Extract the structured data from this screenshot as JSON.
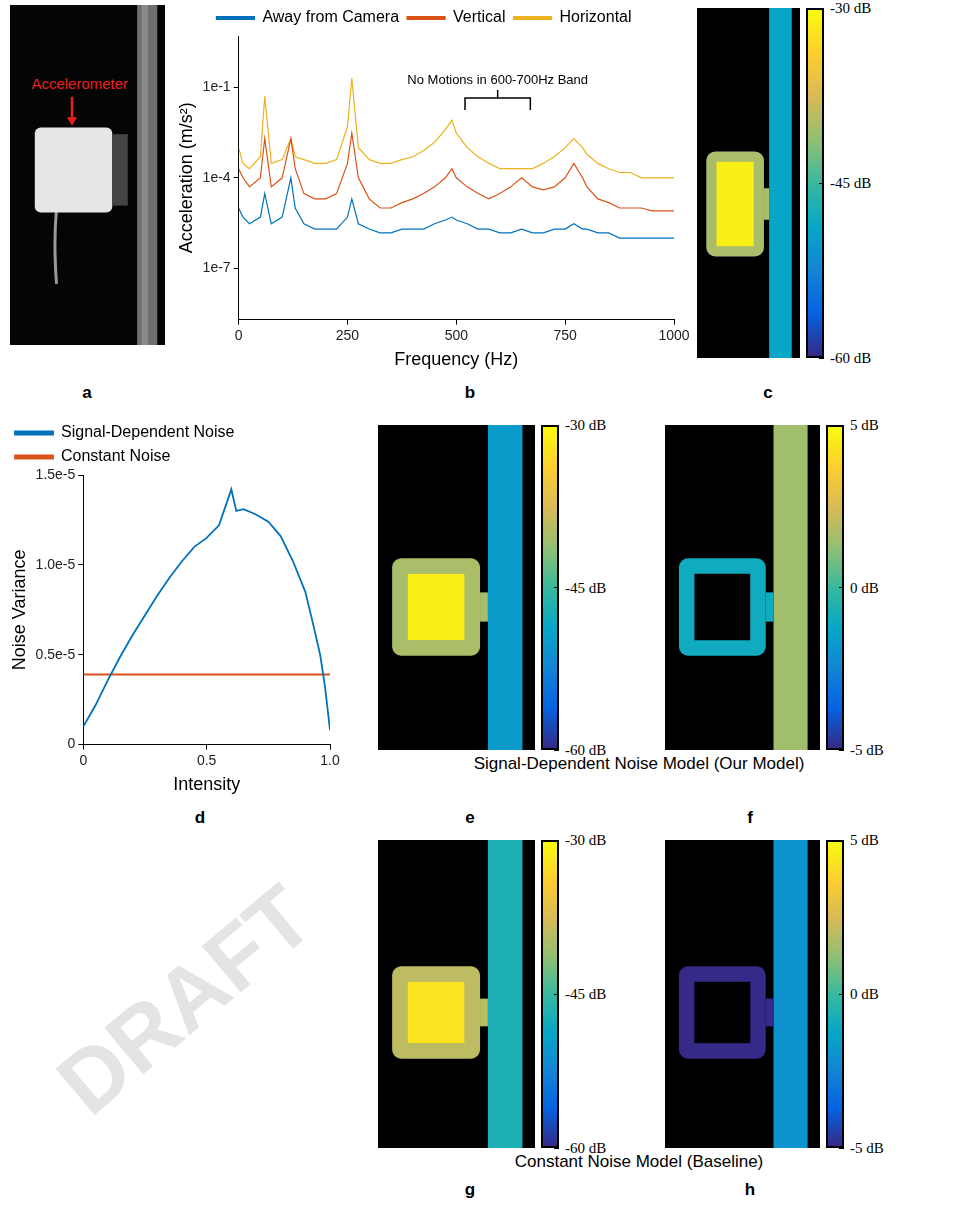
{
  "chart_data": [
    {
      "panel": "b",
      "type": "line",
      "x_label": "Frequency (Hz)",
      "y_label": "Acceleration (m/s²)",
      "x": [
        0,
        10,
        25,
        50,
        60,
        75,
        100,
        120,
        130,
        150,
        175,
        200,
        225,
        250,
        260,
        275,
        300,
        325,
        350,
        375,
        400,
        425,
        450,
        475,
        490,
        500,
        525,
        550,
        575,
        600,
        625,
        650,
        675,
        700,
        725,
        750,
        770,
        790,
        800,
        825,
        850,
        875,
        900,
        925,
        950,
        975,
        1000
      ],
      "series": [
        {
          "name": "Away from Camera",
          "color": "#0072bd",
          "values": [
            1e-05,
            5e-06,
            3e-06,
            5e-06,
            3e-05,
            3e-06,
            5e-06,
            0.0001,
            1e-05,
            3e-06,
            2e-06,
            2e-06,
            2e-06,
            5e-06,
            2e-05,
            3e-06,
            2e-06,
            1.5e-06,
            1.5e-06,
            2e-06,
            2e-06,
            2e-06,
            3e-06,
            4e-06,
            5e-06,
            4e-06,
            3e-06,
            2e-06,
            2e-06,
            1.5e-06,
            1.5e-06,
            2e-06,
            1.5e-06,
            1.5e-06,
            2e-06,
            2e-06,
            3e-06,
            2e-06,
            2e-06,
            1.5e-06,
            1.5e-06,
            1e-06,
            1e-06,
            1e-06,
            1e-06,
            1e-06,
            1e-06
          ]
        },
        {
          "name": "Vertical",
          "color": "#d95319",
          "values": [
            0.0002,
            0.0001,
            5e-05,
            0.0001,
            0.002,
            5e-05,
            0.0001,
            0.002,
            0.0002,
            3e-05,
            2e-05,
            2e-05,
            3e-05,
            0.0003,
            0.003,
            0.0001,
            2e-05,
            1e-05,
            1e-05,
            1.5e-05,
            2e-05,
            3e-05,
            5e-05,
            0.0001,
            0.0002,
            0.0001,
            5e-05,
            3e-05,
            2e-05,
            3e-05,
            5e-05,
            0.0001,
            5e-05,
            4e-05,
            5e-05,
            0.0001,
            0.0003,
            0.0001,
            5e-05,
            2e-05,
            1.5e-05,
            1e-05,
            1e-05,
            1e-05,
            8e-06,
            8e-06,
            8e-06
          ]
        },
        {
          "name": "Horizontal",
          "color": "#edb120",
          "values": [
            0.001,
            0.0003,
            0.0002,
            0.0005,
            0.05,
            0.0003,
            0.0004,
            0.002,
            0.0005,
            0.0004,
            0.0003,
            0.0003,
            0.0004,
            0.005,
            0.2,
            0.001,
            0.0004,
            0.0003,
            0.0003,
            0.0004,
            0.0005,
            0.0008,
            0.0015,
            0.004,
            0.008,
            0.003,
            0.001,
            0.0005,
            0.0003,
            0.0002,
            0.0002,
            0.0002,
            0.0002,
            0.0003,
            0.0005,
            0.001,
            0.002,
            0.001,
            0.0006,
            0.0003,
            0.0002,
            0.00015,
            0.00015,
            0.0001,
            0.0001,
            0.0001,
            0.0001
          ]
        }
      ],
      "xlim": [
        0,
        1000
      ],
      "xticks": [
        0,
        250,
        500,
        750,
        1000
      ],
      "ylim": [
        2e-09,
        5
      ],
      "yticks": [
        {
          "value": 1e-07,
          "label": "1e-7"
        },
        {
          "value": 0.0001,
          "label": "1e-4"
        },
        {
          "value": 0.1,
          "label": "1e-1"
        }
      ],
      "log": "y",
      "grid": false,
      "legend": "top",
      "annotation": {
        "text": "No Motions in 600-700Hz Band",
        "x_range": [
          520,
          670
        ]
      }
    },
    {
      "panel": "d",
      "type": "line",
      "x_label": "Intensity",
      "y_label": "Noise Variance",
      "x": [
        0,
        0.05,
        0.1,
        0.15,
        0.2,
        0.25,
        0.3,
        0.35,
        0.4,
        0.45,
        0.5,
        0.55,
        0.6,
        0.62,
        0.65,
        0.7,
        0.75,
        0.8,
        0.85,
        0.9,
        0.93,
        0.96,
        0.98,
        1
      ],
      "series": [
        {
          "name": "Signal-Dependent Noise",
          "color": "#0072bd",
          "values": [
            1e-06,
            2.2e-06,
            3.6e-06,
            4.9e-06,
            6.1e-06,
            7.2e-06,
            8.3e-06,
            9.3e-06,
            1.02e-05,
            1.1e-05,
            1.15e-05,
            1.22e-05,
            1.42e-05,
            1.3e-05,
            1.31e-05,
            1.28e-05,
            1.24e-05,
            1.16e-05,
            1.02e-05,
            8.5e-06,
            6.8e-06,
            5e-06,
            3.2e-06,
            8e-07
          ]
        },
        {
          "name": "Constant Noise",
          "color": "#d95319",
          "values": [
            3.9e-06,
            3.9e-06,
            3.9e-06,
            3.9e-06,
            3.9e-06,
            3.9e-06,
            3.9e-06,
            3.9e-06,
            3.9e-06,
            3.9e-06,
            3.9e-06,
            3.9e-06,
            3.9e-06,
            3.9e-06,
            3.9e-06,
            3.9e-06,
            3.9e-06,
            3.9e-06,
            3.9e-06,
            3.9e-06,
            3.9e-06,
            3.9e-06,
            3.9e-06,
            3.9e-06
          ]
        }
      ],
      "xlim": [
        0,
        1
      ],
      "xticks": [
        0,
        0.5,
        {
          "value": 1,
          "label": "1.0"
        }
      ],
      "ylim": [
        0,
        1.5e-05
      ],
      "yticks": [
        0,
        {
          "value": 5e-06,
          "label": "0.5e-5"
        },
        {
          "value": 1e-05,
          "label": "1.0e-5"
        },
        {
          "value": 1.5e-05,
          "label": "1.5e-5"
        }
      ],
      "grid": false,
      "legend": "top-left"
    }
  ],
  "photo": {
    "panel": "a",
    "annotation": "Accelerometer"
  },
  "image_panels": [
    {
      "panel": "c",
      "cbar_lim": [
        -60,
        -30
      ],
      "cbar_ticks": [
        {
          "value": -30,
          "label": "-30 dB"
        },
        {
          "value": -45,
          "label": "-45 dB"
        },
        {
          "value": -60,
          "label": "-60 dB"
        }
      ],
      "regions": {
        "edge": -40,
        "center": -31,
        "rod": -49
      }
    },
    {
      "panel": "e",
      "cbar_lim": [
        -60,
        -30
      ],
      "cbar_ticks": [
        {
          "value": -30,
          "label": "-30 dB"
        },
        {
          "value": -45,
          "label": "-45 dB"
        },
        {
          "value": -60,
          "label": "-60 dB"
        }
      ],
      "regions": {
        "edge": -40,
        "center": -31,
        "rod": -50
      }
    },
    {
      "panel": "f",
      "cbar_lim": [
        -5,
        5
      ],
      "cbar_ticks": [
        {
          "value": 5,
          "label": "5 dB"
        },
        {
          "value": 0,
          "label": "0 dB"
        },
        {
          "value": -5,
          "label": "-5 dB"
        }
      ],
      "regions": {
        "edge": -1,
        "rod": 1.5
      }
    },
    {
      "panel": "g",
      "cbar_lim": [
        -60,
        -30
      ],
      "cbar_ticks": [
        {
          "value": -30,
          "label": "-30 dB"
        },
        {
          "value": -45,
          "label": "-45 dB"
        },
        {
          "value": -60,
          "label": "-60 dB"
        }
      ],
      "regions": {
        "edge": -39,
        "center": -32,
        "rod": -47
      }
    },
    {
      "panel": "h",
      "cbar_lim": [
        -5,
        5
      ],
      "cbar_ticks": [
        {
          "value": 5,
          "label": "5 dB"
        },
        {
          "value": 0,
          "label": "0 dB"
        },
        {
          "value": -5,
          "label": "-5 dB"
        }
      ],
      "regions": {
        "edge": -5,
        "rod": -2
      }
    }
  ],
  "captions": [
    {
      "text": "Signal-Dependent Noise Model (Our Model)",
      "panels": [
        "e",
        "f"
      ]
    },
    {
      "text": "Constant Noise Model (Baseline)",
      "panels": [
        "g",
        "h"
      ]
    }
  ],
  "watermark": "DRAFT"
}
